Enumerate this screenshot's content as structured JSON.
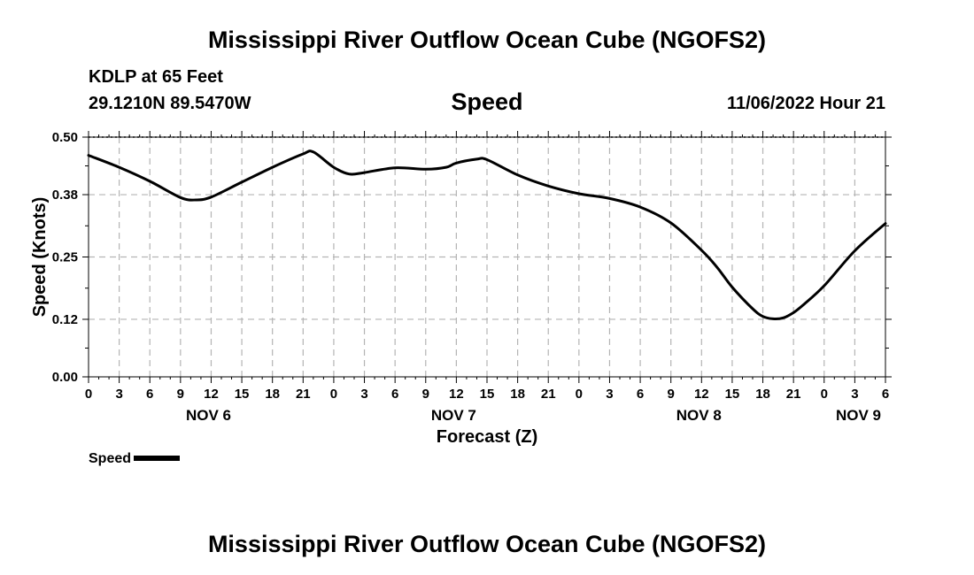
{
  "header": {
    "title": "Mississippi River Outflow Ocean Cube (NGOFS2)",
    "station": "KDLP at 65 Feet",
    "coords": "29.1210N  89.5470W",
    "parameter": "Speed",
    "timestamp": "11/06/2022 Hour 21"
  },
  "footer": {
    "title": "Mississippi River Outflow Ocean Cube (NGOFS2)"
  },
  "legend": {
    "label": "Speed",
    "color": "#000000"
  },
  "chart_data": {
    "type": "line",
    "title": "Speed",
    "xlabel": "Forecast (Z)",
    "ylabel": "Speed (Knots)",
    "xlim": [
      0,
      78
    ],
    "ylim": [
      0,
      0.5
    ],
    "yticks": [
      0.0,
      0.12,
      0.25,
      0.38,
      0.5
    ],
    "ytick_labels": [
      "0.00",
      "0.12",
      "0.25",
      "0.38",
      "0.50"
    ],
    "xticks": [
      0,
      3,
      6,
      9,
      12,
      15,
      18,
      21,
      24,
      27,
      30,
      33,
      36,
      39,
      42,
      45,
      48,
      51,
      54,
      57,
      60,
      63,
      66,
      69,
      72,
      75,
      78
    ],
    "xtick_labels": [
      "0",
      "3",
      "6",
      "9",
      "12",
      "15",
      "18",
      "21",
      "0",
      "3",
      "6",
      "9",
      "12",
      "15",
      "18",
      "21",
      "0",
      "3",
      "6",
      "9",
      "12",
      "15",
      "18",
      "21",
      "0",
      "3",
      "6"
    ],
    "date_labels": [
      {
        "label": "NOV 6",
        "x": 12
      },
      {
        "label": "NOV 7",
        "x": 36
      },
      {
        "label": "NOV 8",
        "x": 60
      },
      {
        "label": "NOV 9",
        "x": 78
      }
    ],
    "grid": true,
    "legend_position": "bottom-left",
    "series": [
      {
        "name": "Speed",
        "color": "#000000",
        "x": [
          0,
          3,
          6,
          9,
          10.5,
          12,
          15,
          18,
          21,
          22,
          24,
          25.5,
          27,
          30,
          33,
          35,
          36,
          38,
          39,
          42,
          45,
          48,
          51,
          54,
          57,
          60,
          61.5,
          63,
          65,
          66,
          67,
          68,
          69,
          70,
          72,
          75,
          78
        ],
        "y": [
          0.462,
          0.437,
          0.408,
          0.374,
          0.369,
          0.375,
          0.406,
          0.437,
          0.465,
          0.469,
          0.437,
          0.423,
          0.426,
          0.436,
          0.433,
          0.437,
          0.446,
          0.454,
          0.453,
          0.421,
          0.398,
          0.382,
          0.372,
          0.354,
          0.321,
          0.264,
          0.229,
          0.187,
          0.142,
          0.126,
          0.121,
          0.123,
          0.134,
          0.151,
          0.19,
          0.263,
          0.32
        ]
      }
    ]
  }
}
